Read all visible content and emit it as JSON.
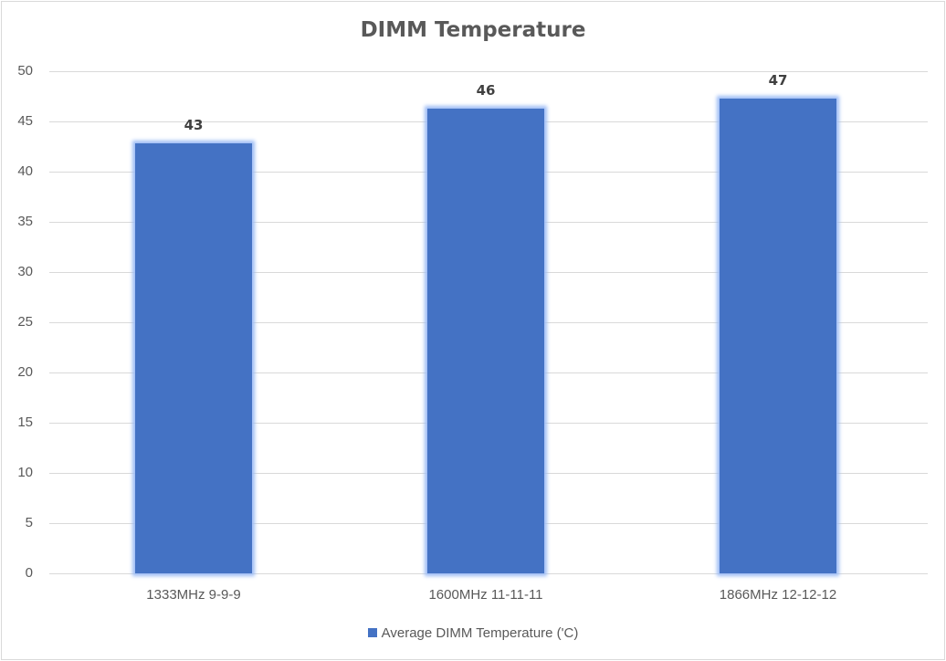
{
  "chart_data": {
    "type": "bar",
    "title": "DIMM Temperature",
    "categories": [
      "1333MHz 9-9-9",
      "1600MHz 11-11-11",
      "1866MHz 12-12-12"
    ],
    "series": [
      {
        "name": "Average DIMM Temperature ('C)",
        "values": [
          43,
          46,
          47
        ],
        "color": "#4472c4"
      }
    ],
    "data_labels": [
      "43",
      "46",
      "47"
    ],
    "xlabel": "",
    "ylabel": "",
    "ylim": [
      0,
      50
    ],
    "yticks": [
      "50",
      "45",
      "40",
      "35",
      "30",
      "25",
      "20",
      "15",
      "10",
      "5",
      "0"
    ],
    "grid": true,
    "legend_position": "bottom"
  }
}
